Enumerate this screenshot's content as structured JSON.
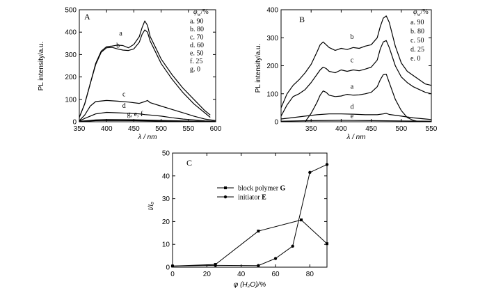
{
  "chart_data": [
    {
      "type": "line",
      "panel_label": "A",
      "xlabel": "λ / nm",
      "ylabel": "PL intensity/a.u.",
      "xlim": [
        350,
        600
      ],
      "ylim": [
        0,
        500
      ],
      "xticks": [
        350,
        400,
        450,
        500,
        550,
        600
      ],
      "yticks": [
        0,
        100,
        200,
        300,
        400,
        500
      ],
      "legend_title": "φ_w/%",
      "legend_title_main": "φ",
      "legend_title_sub": "w",
      "legend_title_tail": "/%",
      "legend_entries": [
        "a. 90",
        "b. 80",
        "c. 70",
        "d. 60",
        "e. 50",
        "f. 25",
        "g. 0"
      ],
      "series": [
        {
          "name": "a",
          "x": [
            350,
            360,
            370,
            380,
            390,
            400,
            410,
            420,
            430,
            440,
            450,
            460,
            465,
            470,
            475,
            480,
            490,
            500,
            520,
            540,
            560,
            580,
            590
          ],
          "y": [
            20,
            80,
            170,
            260,
            315,
            335,
            338,
            342,
            340,
            330,
            345,
            380,
            420,
            450,
            430,
            380,
            330,
            280,
            210,
            150,
            100,
            50,
            30
          ]
        },
        {
          "name": "b",
          "x": [
            350,
            360,
            370,
            380,
            390,
            400,
            410,
            420,
            430,
            440,
            450,
            460,
            465,
            470,
            475,
            480,
            490,
            500,
            520,
            540,
            560,
            580,
            590
          ],
          "y": [
            20,
            80,
            170,
            255,
            310,
            330,
            332,
            325,
            320,
            318,
            325,
            355,
            390,
            410,
            400,
            360,
            310,
            260,
            190,
            130,
            80,
            40,
            20
          ]
        },
        {
          "name": "c",
          "x": [
            350,
            360,
            370,
            380,
            400,
            420,
            440,
            460,
            470,
            475,
            480,
            500,
            520,
            540,
            560,
            580,
            600
          ],
          "y": [
            5,
            30,
            70,
            90,
            95,
            92,
            88,
            82,
            90,
            95,
            85,
            70,
            55,
            40,
            25,
            12,
            5
          ]
        },
        {
          "name": "d",
          "x": [
            350,
            360,
            380,
            400,
            420,
            440,
            460,
            470,
            480,
            500,
            520,
            540,
            560,
            580,
            600
          ],
          "y": [
            3,
            15,
            35,
            42,
            40,
            38,
            35,
            32,
            30,
            25,
            18,
            12,
            8,
            4,
            2
          ]
        },
        {
          "name": "e",
          "x": [
            350,
            380,
            400,
            450,
            500,
            550,
            600
          ],
          "y": [
            2,
            8,
            10,
            9,
            6,
            3,
            1
          ]
        },
        {
          "name": "f",
          "x": [
            350,
            380,
            400,
            450,
            500,
            550,
            600
          ],
          "y": [
            2,
            6,
            8,
            7,
            5,
            2,
            1
          ]
        },
        {
          "name": "g",
          "x": [
            350,
            380,
            400,
            450,
            500,
            550,
            600
          ],
          "y": [
            1,
            5,
            6,
            5,
            3,
            2,
            1
          ]
        }
      ],
      "curve_labels": [
        {
          "text": "a",
          "x": 426,
          "y": 385
        },
        {
          "text": "b",
          "x": 421,
          "y": 330
        },
        {
          "text": "c",
          "x": 432,
          "y": 113
        },
        {
          "text": "d",
          "x": 432,
          "y": 62
        },
        {
          "text": "g, e, f",
          "x": 452,
          "y": 25
        }
      ]
    },
    {
      "type": "line",
      "panel_label": "B",
      "xlabel": "λ / nm",
      "ylabel": "PL intensity/a.u.",
      "xlim": [
        300,
        550
      ],
      "ylim": [
        0,
        400
      ],
      "xticks": [
        350,
        400,
        450,
        500,
        550
      ],
      "yticks": [
        0,
        100,
        200,
        300,
        400
      ],
      "legend_title": "φ_w/%",
      "legend_title_main": "φ",
      "legend_title_sub": "w",
      "legend_title_tail": "/%",
      "legend_entries": [
        "a. 90",
        "b. 80",
        "c. 50",
        "d. 25",
        "e. 0"
      ],
      "series": [
        {
          "name": "a",
          "x": [
            340,
            350,
            360,
            365,
            370,
            375,
            380,
            390,
            400,
            410,
            420,
            430,
            440,
            450,
            460,
            465,
            470,
            475,
            480,
            490,
            500,
            510,
            520,
            530
          ],
          "y": [
            0,
            30,
            70,
            95,
            110,
            105,
            95,
            90,
            92,
            98,
            95,
            96,
            100,
            105,
            125,
            150,
            168,
            170,
            140,
            80,
            40,
            15,
            5,
            0
          ]
        },
        {
          "name": "b",
          "x": [
            300,
            310,
            320,
            330,
            340,
            350,
            360,
            365,
            370,
            375,
            380,
            390,
            400,
            410,
            420,
            430,
            440,
            450,
            460,
            465,
            470,
            475,
            480,
            490,
            500,
            510,
            520,
            530,
            540,
            550
          ],
          "y": [
            50,
            100,
            130,
            150,
            175,
            205,
            250,
            275,
            285,
            275,
            265,
            255,
            262,
            258,
            265,
            262,
            270,
            275,
            300,
            340,
            370,
            378,
            355,
            270,
            210,
            180,
            165,
            150,
            135,
            130
          ]
        },
        {
          "name": "c",
          "x": [
            300,
            310,
            320,
            330,
            340,
            350,
            360,
            365,
            370,
            375,
            380,
            390,
            400,
            410,
            420,
            430,
            440,
            450,
            460,
            465,
            470,
            475,
            480,
            490,
            500,
            510,
            520,
            530,
            540,
            550
          ],
          "y": [
            20,
            60,
            90,
            100,
            115,
            140,
            170,
            185,
            195,
            190,
            180,
            175,
            185,
            180,
            185,
            182,
            188,
            195,
            220,
            260,
            285,
            290,
            265,
            200,
            160,
            140,
            125,
            115,
            105,
            100
          ]
        },
        {
          "name": "d",
          "x": [
            300,
            320,
            340,
            360,
            380,
            400,
            420,
            440,
            460,
            470,
            475,
            480,
            500,
            520,
            540,
            550
          ],
          "y": [
            10,
            15,
            20,
            25,
            28,
            28,
            27,
            25,
            25,
            28,
            30,
            26,
            20,
            14,
            10,
            8
          ]
        },
        {
          "name": "e",
          "x": [
            300,
            350,
            400,
            450,
            500,
            550
          ],
          "y": [
            2,
            4,
            5,
            4,
            3,
            2
          ]
        }
      ],
      "curve_labels": [
        {
          "text": "b",
          "x": 418,
          "y": 296
        },
        {
          "text": "c",
          "x": 418,
          "y": 212
        },
        {
          "text": "a",
          "x": 418,
          "y": 118
        },
        {
          "text": "d",
          "x": 418,
          "y": 46
        },
        {
          "text": "e",
          "x": 418,
          "y": 12
        }
      ]
    },
    {
      "type": "line",
      "panel_label": "C",
      "xlabel": "φ (H₂O)/%",
      "ylabel": "I/I₀",
      "xlim": [
        0,
        90
      ],
      "ylim": [
        0,
        50
      ],
      "xticks": [
        0,
        20,
        40,
        60,
        80
      ],
      "yticks": [
        0,
        10,
        20,
        30,
        40,
        50
      ],
      "series": [
        {
          "name": "block polymer G",
          "marker": "square",
          "x": [
            0,
            25,
            50,
            75,
            90
          ],
          "y": [
            0.5,
            1.2,
            15.8,
            20.7,
            10.3
          ]
        },
        {
          "name": "initiator E",
          "marker": "circle",
          "x": [
            0,
            25,
            50,
            60,
            70,
            80,
            90
          ],
          "y": [
            0.5,
            0.8,
            0.7,
            3.8,
            9.2,
            41.5,
            45.0
          ]
        }
      ],
      "legend_entries": [
        {
          "text": "block polymer ",
          "bold": "G"
        },
        {
          "text": "initiator ",
          "bold": "E"
        }
      ]
    }
  ]
}
